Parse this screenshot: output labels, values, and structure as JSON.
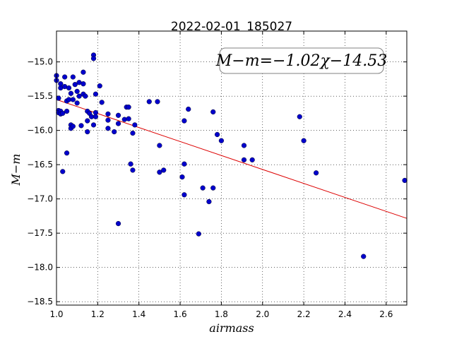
{
  "chart_data": {
    "type": "scatter",
    "title": "2022-02-01_185027",
    "xlabel": "airmass",
    "ylabel": "M−m",
    "xlim": [
      1.0,
      2.7
    ],
    "ylim": [
      -18.55,
      -14.55
    ],
    "grid": true,
    "x_ticks": [
      "1.0",
      "1.2",
      "1.4",
      "1.6",
      "1.8",
      "2.0",
      "2.2",
      "2.4",
      "2.6"
    ],
    "y_ticks": [
      "−15.0",
      "−15.5",
      "−16.0",
      "−16.5",
      "−17.0",
      "−17.5",
      "−18.0",
      "−18.5"
    ],
    "annotation": "M−m=−1.02χ−14.53",
    "fit": {
      "slope": -1.02,
      "intercept": -14.53,
      "color": "#dd0000"
    },
    "marker_color": "#0000cc",
    "points": [
      [
        1.0,
        -15.2
      ],
      [
        1.0,
        -15.27
      ],
      [
        1.01,
        -15.53
      ],
      [
        1.01,
        -15.71
      ],
      [
        1.01,
        -15.74
      ],
      [
        1.02,
        -15.38
      ],
      [
        1.02,
        -15.32
      ],
      [
        1.02,
        -15.72
      ],
      [
        1.02,
        -15.76
      ],
      [
        1.03,
        -15.75
      ],
      [
        1.03,
        -16.6
      ],
      [
        1.04,
        -15.22
      ],
      [
        1.04,
        -15.36
      ],
      [
        1.05,
        -15.57
      ],
      [
        1.05,
        -15.72
      ],
      [
        1.05,
        -16.33
      ],
      [
        1.06,
        -15.38
      ],
      [
        1.06,
        -15.55
      ],
      [
        1.07,
        -15.46
      ],
      [
        1.07,
        -15.92
      ],
      [
        1.07,
        -15.97
      ],
      [
        1.08,
        -15.22
      ],
      [
        1.08,
        -15.55
      ],
      [
        1.08,
        -15.94
      ],
      [
        1.09,
        -15.33
      ],
      [
        1.1,
        -15.43
      ],
      [
        1.1,
        -15.6
      ],
      [
        1.11,
        -15.3
      ],
      [
        1.11,
        -15.5
      ],
      [
        1.12,
        -15.93
      ],
      [
        1.13,
        -15.15
      ],
      [
        1.13,
        -15.32
      ],
      [
        1.13,
        -15.47
      ],
      [
        1.14,
        -15.5
      ],
      [
        1.15,
        -15.72
      ],
      [
        1.15,
        -15.86
      ],
      [
        1.15,
        -16.02
      ],
      [
        1.16,
        -15.75
      ],
      [
        1.17,
        -15.8
      ],
      [
        1.18,
        -14.9
      ],
      [
        1.18,
        -14.95
      ],
      [
        1.18,
        -15.92
      ],
      [
        1.19,
        -15.47
      ],
      [
        1.19,
        -15.74
      ],
      [
        1.19,
        -15.8
      ],
      [
        1.21,
        -15.35
      ],
      [
        1.22,
        -15.59
      ],
      [
        1.25,
        -15.76
      ],
      [
        1.25,
        -15.85
      ],
      [
        1.25,
        -15.97
      ],
      [
        1.28,
        -16.02
      ],
      [
        1.3,
        -15.78
      ],
      [
        1.3,
        -15.9
      ],
      [
        1.3,
        -17.36
      ],
      [
        1.33,
        -15.84
      ],
      [
        1.34,
        -15.66
      ],
      [
        1.35,
        -15.66
      ],
      [
        1.35,
        -15.83
      ],
      [
        1.36,
        -16.49
      ],
      [
        1.37,
        -16.04
      ],
      [
        1.37,
        -16.58
      ],
      [
        1.38,
        -15.92
      ],
      [
        1.45,
        -15.58
      ],
      [
        1.49,
        -15.58
      ],
      [
        1.5,
        -16.22
      ],
      [
        1.5,
        -16.61
      ],
      [
        1.52,
        -16.58
      ],
      [
        1.61,
        -16.68
      ],
      [
        1.62,
        -15.86
      ],
      [
        1.62,
        -16.49
      ],
      [
        1.62,
        -16.94
      ],
      [
        1.64,
        -15.69
      ],
      [
        1.69,
        -17.51
      ],
      [
        1.71,
        -16.84
      ],
      [
        1.74,
        -17.04
      ],
      [
        1.76,
        -16.84
      ],
      [
        1.76,
        -15.73
      ],
      [
        1.78,
        -16.06
      ],
      [
        1.8,
        -16.15
      ],
      [
        1.91,
        -16.22
      ],
      [
        1.91,
        -16.43
      ],
      [
        1.95,
        -16.43
      ],
      [
        2.18,
        -15.8
      ],
      [
        2.2,
        -16.15
      ],
      [
        2.26,
        -16.62
      ],
      [
        2.49,
        -17.84
      ],
      [
        2.69,
        -16.73
      ]
    ]
  }
}
